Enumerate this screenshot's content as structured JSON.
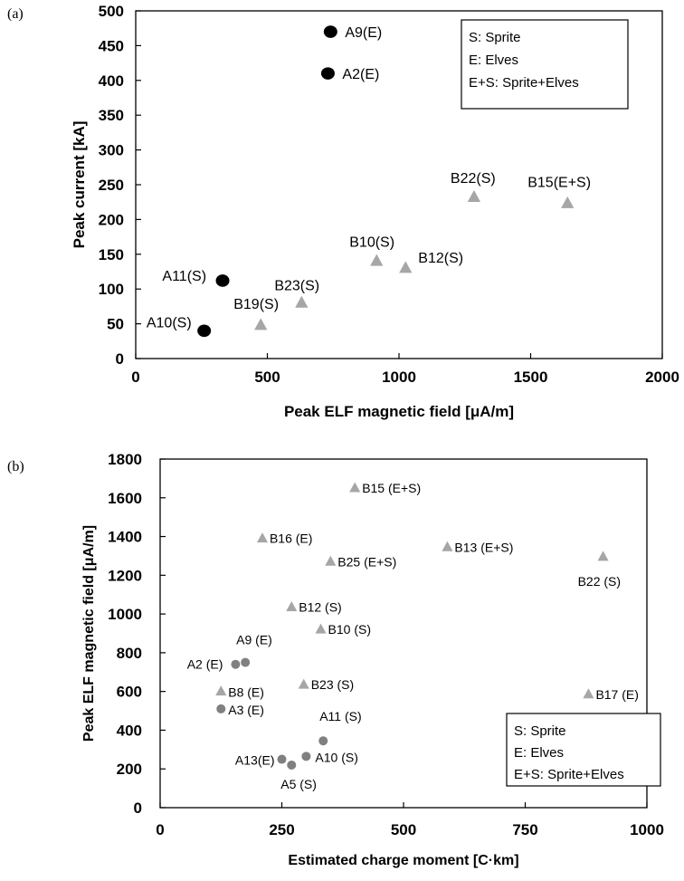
{
  "panels": {
    "a": {
      "letter": "(a)"
    },
    "b": {
      "letter": "(b)"
    }
  },
  "colors": {
    "circle_a": "#000000",
    "circle_b": "#808080",
    "triangle": "#a6a6a6",
    "axis": "#000000"
  },
  "chart_data": [
    {
      "type": "scatter",
      "title": "",
      "xlabel": "Peak ELF magnetic field [μA/m]",
      "ylabel": "Peak current [kA]",
      "xlim": [
        0,
        2000
      ],
      "ylim": [
        0,
        500
      ],
      "xticks": [
        0,
        500,
        1000,
        1500,
        2000
      ],
      "yticks": [
        0,
        50,
        100,
        150,
        200,
        250,
        300,
        350,
        400,
        450,
        500
      ],
      "grid": false,
      "legend_placement": "top-right",
      "legend": [
        "S: Sprite",
        "E: Elves",
        "E+S: Sprite+Elves"
      ],
      "series": [
        {
          "marker": "circle",
          "points": [
            {
              "label": "A9(E)",
              "x": 740,
              "y": 470
            },
            {
              "label": "A2(E)",
              "x": 730,
              "y": 410
            },
            {
              "label": "A11(S)",
              "x": 330,
              "y": 112
            },
            {
              "label": "A10(S)",
              "x": 260,
              "y": 40
            }
          ]
        },
        {
          "marker": "triangle",
          "points": [
            {
              "label": "B22(S)",
              "x": 1285,
              "y": 232
            },
            {
              "label": "B15(E+S)",
              "x": 1640,
              "y": 223
            },
            {
              "label": "B10(S)",
              "x": 915,
              "y": 140
            },
            {
              "label": "B12(S)",
              "x": 1025,
              "y": 130
            },
            {
              "label": "B23(S)",
              "x": 630,
              "y": 80
            },
            {
              "label": "B19(S)",
              "x": 475,
              "y": 48
            }
          ]
        }
      ]
    },
    {
      "type": "scatter",
      "title": "",
      "xlabel": "Estimated charge moment [C·km]",
      "ylabel": "Peak ELF magnetic field [μA/m]",
      "xlim": [
        0,
        1000
      ],
      "ylim": [
        0,
        1800
      ],
      "xticks": [
        0,
        250,
        500,
        750,
        1000
      ],
      "yticks": [
        0,
        200,
        400,
        600,
        800,
        1000,
        1200,
        1400,
        1600,
        1800
      ],
      "grid": false,
      "legend_placement": "bottom-right",
      "legend": [
        "S: Sprite",
        "E: Elves",
        "E+S: Sprite+Elves"
      ],
      "series": [
        {
          "marker": "circle",
          "points": [
            {
              "label": "A9 (E)",
              "x": 175,
              "y": 750
            },
            {
              "label": "A2 (E)",
              "x": 155,
              "y": 740
            },
            {
              "label": "A3 (E)",
              "x": 125,
              "y": 510
            },
            {
              "label": "A11 (S)",
              "x": 335,
              "y": 345
            },
            {
              "label": "A13(E)",
              "x": 250,
              "y": 250
            },
            {
              "label": "A10 (S)",
              "x": 300,
              "y": 265
            },
            {
              "label": "A5 (S)",
              "x": 270,
              "y": 220
            }
          ]
        },
        {
          "marker": "triangle",
          "points": [
            {
              "label": "B15 (E+S)",
              "x": 400,
              "y": 1650
            },
            {
              "label": "B16 (E)",
              "x": 210,
              "y": 1390
            },
            {
              "label": "B13 (E+S)",
              "x": 590,
              "y": 1345
            },
            {
              "label": "B25 (E+S)",
              "x": 350,
              "y": 1270
            },
            {
              "label": "B22 (S)",
              "x": 910,
              "y": 1295
            },
            {
              "label": "B12 (S)",
              "x": 270,
              "y": 1035
            },
            {
              "label": "B10 (S)",
              "x": 330,
              "y": 920
            },
            {
              "label": "B23 (S)",
              "x": 295,
              "y": 635
            },
            {
              "label": "B8 (E)",
              "x": 125,
              "y": 600
            },
            {
              "label": "B17 (E)",
              "x": 880,
              "y": 585
            }
          ]
        }
      ]
    }
  ]
}
